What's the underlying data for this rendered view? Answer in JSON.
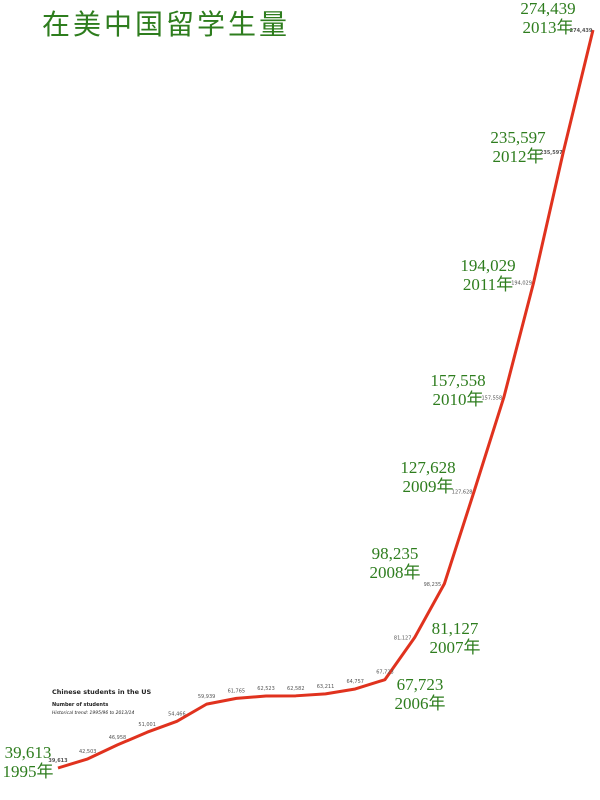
{
  "chart_data": {
    "type": "line",
    "title": "在美中国留学生量",
    "inset_title": "Chinese students in the US",
    "inset_subtitle": "Number of students",
    "inset_note": "Historical trend: 1995/96 to 2013/14",
    "color": "#e0321e",
    "values": [
      39613,
      42503,
      46958,
      51001,
      54466,
      59939,
      61765,
      62523,
      62582,
      63211,
      64757,
      67723,
      81127,
      98235,
      127628,
      157558,
      194029,
      235597,
      274439
    ],
    "value_labels": [
      "39,613",
      "42,503",
      "46,958",
      "51,001",
      "54,466",
      "59,939",
      "61,765",
      "62,523",
      "62,582",
      "63,211",
      "64,757",
      "67,723",
      "81,127",
      "98,235",
      "127,628",
      "157,558",
      "194,029",
      "235,597",
      "274,439"
    ],
    "annotations": [
      {
        "text": "39,613",
        "year": "1995年"
      },
      {
        "text": "67,723",
        "year": "2006年"
      },
      {
        "text": "81,127",
        "year": "2007年"
      },
      {
        "text": "98,235",
        "year": "2008年"
      },
      {
        "text": "127,628",
        "year": "2009年"
      },
      {
        "text": "157,558",
        "year": "2010年"
      },
      {
        "text": "194,029",
        "year": "2011年"
      },
      {
        "text": "235,597",
        "year": "2012年"
      },
      {
        "text": "274,439",
        "year": "2013年"
      }
    ]
  }
}
